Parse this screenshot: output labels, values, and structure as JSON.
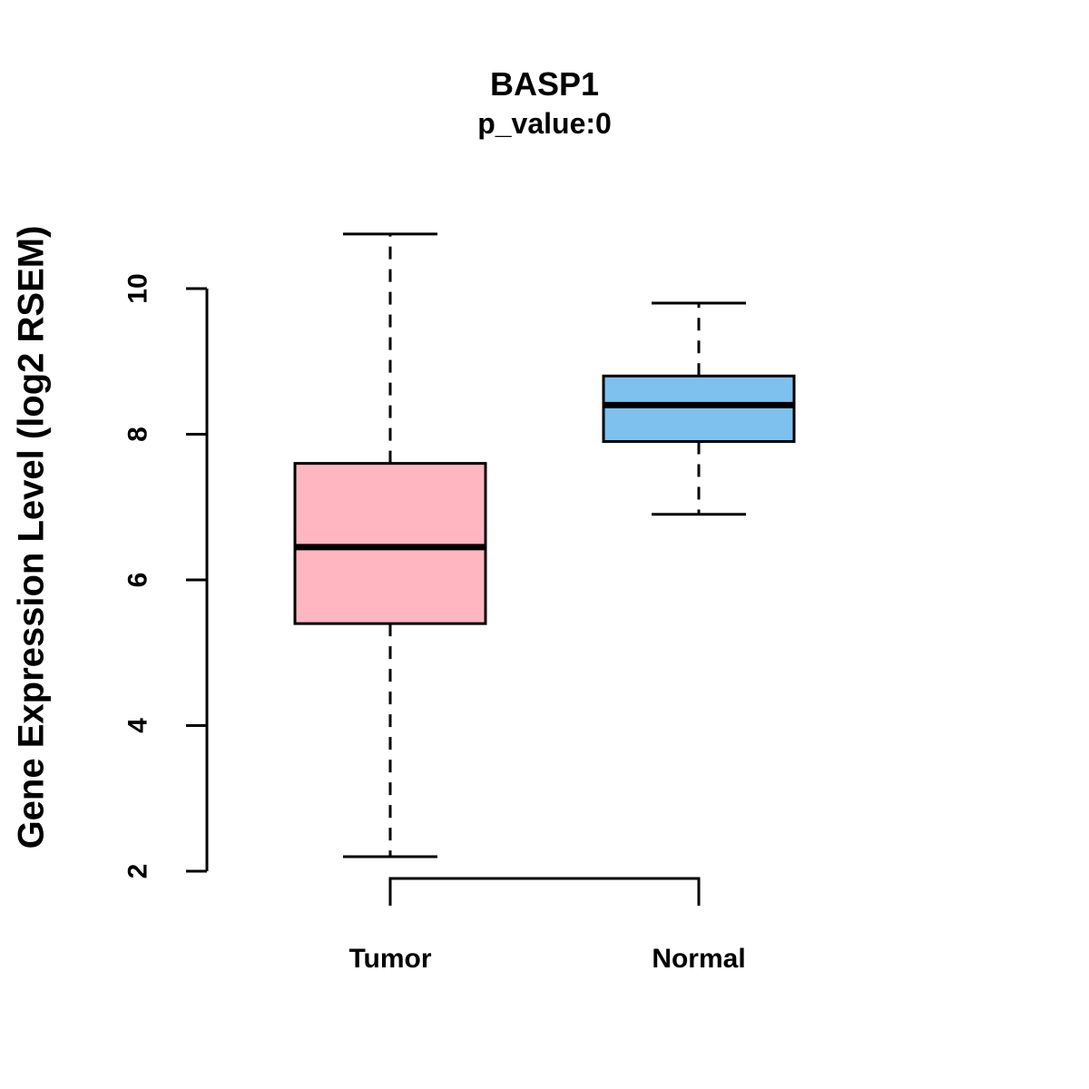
{
  "chart_data": {
    "type": "box",
    "title": "BASP1",
    "subtitle": "p_value:0",
    "ylabel": "Gene Expression Level (log2 RSEM)",
    "xlabel": "",
    "ylim": [
      2,
      10
    ],
    "yticks": [
      2,
      4,
      6,
      8,
      10
    ],
    "grid": false,
    "legend": "none",
    "categories": [
      "Tumor",
      "Normal"
    ],
    "series": [
      {
        "name": "Tumor",
        "color": "#FFB6C1",
        "lower_whisker": 2.2,
        "q1": 5.4,
        "median": 6.45,
        "q3": 7.6,
        "upper_whisker": 10.75
      },
      {
        "name": "Normal",
        "color": "#7EC0EE",
        "lower_whisker": 6.9,
        "q1": 7.9,
        "median": 8.4,
        "q3": 8.8,
        "upper_whisker": 9.8
      }
    ]
  }
}
